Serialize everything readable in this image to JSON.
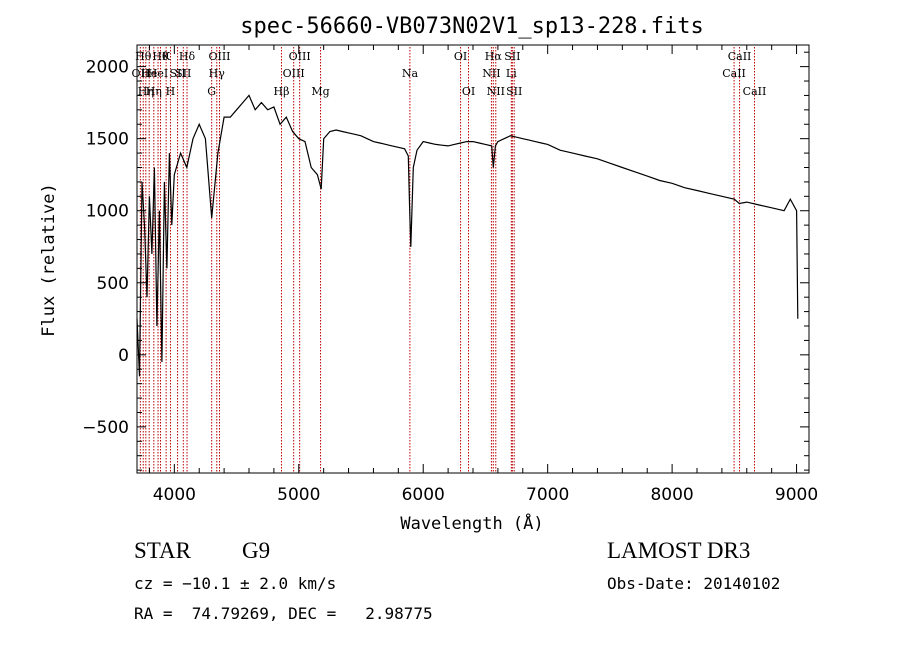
{
  "chart_data": {
    "type": "line",
    "title": "spec-56660-VB073N02V1_sp13-228.fits",
    "xlabel": "Wavelength (Å)",
    "ylabel": "Flux (relative)",
    "xlim": [
      3700,
      9100
    ],
    "ylim": [
      -820,
      2150
    ],
    "xticks": [
      4000,
      5000,
      6000,
      7000,
      8000,
      9000
    ],
    "yticks": [
      -500,
      0,
      500,
      1000,
      1500,
      2000
    ],
    "grid": false,
    "line_color": "#000000",
    "marker_color": "#bb0000",
    "series": [
      {
        "name": "flux",
        "x": [
          3700,
          3720,
          3740,
          3760,
          3780,
          3800,
          3820,
          3840,
          3860,
          3880,
          3900,
          3920,
          3940,
          3960,
          3980,
          4000,
          4050,
          4100,
          4150,
          4200,
          4250,
          4300,
          4350,
          4400,
          4450,
          4500,
          4550,
          4600,
          4650,
          4700,
          4750,
          4800,
          4850,
          4900,
          4950,
          5000,
          5050,
          5100,
          5150,
          5180,
          5200,
          5250,
          5300,
          5350,
          5400,
          5450,
          5500,
          5550,
          5600,
          5650,
          5700,
          5750,
          5800,
          5850,
          5880,
          5890,
          5900,
          5920,
          5950,
          6000,
          6050,
          6100,
          6150,
          6200,
          6250,
          6300,
          6350,
          6400,
          6450,
          6500,
          6550,
          6563,
          6580,
          6600,
          6650,
          6700,
          6750,
          6800,
          6850,
          6900,
          6950,
          7000,
          7100,
          7200,
          7300,
          7400,
          7500,
          7600,
          7700,
          7800,
          7900,
          8000,
          8100,
          8200,
          8300,
          8400,
          8500,
          8540,
          8600,
          8700,
          8800,
          8900,
          8950,
          9000,
          9010
        ],
        "y": [
          250,
          -150,
          1200,
          900,
          400,
          1100,
          700,
          1300,
          200,
          1000,
          -50,
          1200,
          600,
          1400,
          900,
          1250,
          1400,
          1300,
          1500,
          1600,
          1500,
          950,
          1400,
          1650,
          1650,
          1700,
          1750,
          1800,
          1700,
          1750,
          1700,
          1720,
          1600,
          1650,
          1550,
          1500,
          1480,
          1300,
          1250,
          1150,
          1500,
          1550,
          1560,
          1550,
          1540,
          1530,
          1520,
          1500,
          1480,
          1470,
          1460,
          1450,
          1440,
          1430,
          1380,
          1050,
          750,
          1300,
          1420,
          1480,
          1470,
          1460,
          1455,
          1450,
          1460,
          1470,
          1480,
          1480,
          1470,
          1460,
          1450,
          1300,
          1450,
          1480,
          1500,
          1520,
          1510,
          1500,
          1490,
          1480,
          1470,
          1460,
          1420,
          1400,
          1380,
          1360,
          1330,
          1300,
          1270,
          1240,
          1210,
          1190,
          1160,
          1140,
          1120,
          1100,
          1080,
          1050,
          1060,
          1040,
          1020,
          1000,
          1080,
          1000,
          250
        ]
      }
    ],
    "line_markers": [
      {
        "x": 3727,
        "label": "OII",
        "row": 1
      },
      {
        "x": 3750,
        "label": "Hθ",
        "row": 0
      },
      {
        "x": 3771,
        "label": "Hη",
        "row": 2
      },
      {
        "x": 3798,
        "label": "He",
        "row": 1
      },
      {
        "x": 3835,
        "label": "Hη",
        "row": 2
      },
      {
        "x": 3869,
        "label": "HeI",
        "row": 1
      },
      {
        "x": 3889,
        "label": "Hθ",
        "row": 0
      },
      {
        "x": 3934,
        "label": "K",
        "row": 0
      },
      {
        "x": 3969,
        "label": "H",
        "row": 2
      },
      {
        "x": 4026,
        "label": "SII",
        "row": 1
      },
      {
        "x": 4072,
        "label": "SII",
        "row": 1
      },
      {
        "x": 4102,
        "label": "Hδ",
        "row": 0
      },
      {
        "x": 4300,
        "label": "G",
        "row": 2
      },
      {
        "x": 4341,
        "label": "Hγ",
        "row": 1
      },
      {
        "x": 4363,
        "label": "OIII",
        "row": 0
      },
      {
        "x": 4861,
        "label": "Hβ",
        "row": 2
      },
      {
        "x": 4959,
        "label": "OIII",
        "row": 1
      },
      {
        "x": 5007,
        "label": "OIII",
        "row": 0
      },
      {
        "x": 5175,
        "label": "Mg",
        "row": 2
      },
      {
        "x": 5893,
        "label": "Na",
        "row": 1
      },
      {
        "x": 6300,
        "label": "OI",
        "row": 0
      },
      {
        "x": 6364,
        "label": "OI",
        "row": 2
      },
      {
        "x": 6548,
        "label": "NII",
        "row": 1
      },
      {
        "x": 6563,
        "label": "Hα",
        "row": 0
      },
      {
        "x": 6583,
        "label": "NII",
        "row": 2
      },
      {
        "x": 6708,
        "label": "Li",
        "row": 1
      },
      {
        "x": 6716,
        "label": "SII",
        "row": 0
      },
      {
        "x": 6731,
        "label": "SII",
        "row": 2
      },
      {
        "x": 8498,
        "label": "CaII",
        "row": 1
      },
      {
        "x": 8542,
        "label": "CaII",
        "row": 0
      },
      {
        "x": 8662,
        "label": "CaII",
        "row": 2
      }
    ]
  },
  "info": {
    "object_class": "STAR",
    "subclass": "G9",
    "survey": "LAMOST DR3",
    "cz": "cz = −10.1 ± 2.0 km/s",
    "obs_date": "Obs-Date: 20140102",
    "coords": "RA =  74.79269, DEC =   2.98775"
  }
}
